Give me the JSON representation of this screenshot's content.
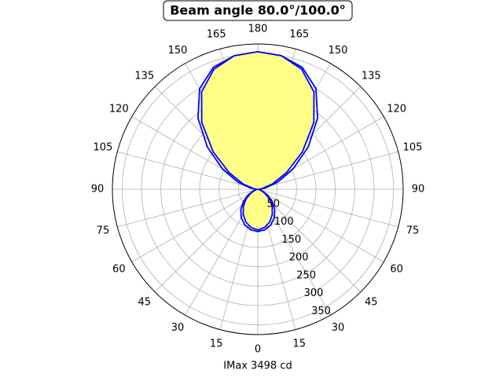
{
  "chart_data": {
    "type": "polar",
    "title": "Beam angle 80.0°/100.0°",
    "x_label": "IMax 3498 cd",
    "x": [
      0,
      10,
      20,
      30,
      40,
      50,
      60,
      70,
      80,
      90,
      100,
      110,
      120,
      130,
      140,
      150,
      160,
      170,
      180,
      190,
      200,
      210,
      220,
      230,
      240,
      250,
      260,
      270,
      280,
      290,
      300,
      310,
      320,
      330,
      340,
      350,
      360
    ],
    "series": [
      {
        "color": "#0000ff",
        "fill": null,
        "values": [
          109,
          106,
          98,
          85,
          68,
          48,
          28,
          12,
          3,
          4,
          20,
          55,
          105,
          170,
          240,
          300,
          335,
          350,
          355,
          350,
          335,
          300,
          240,
          170,
          105,
          55,
          20,
          4,
          3,
          12,
          28,
          48,
          68,
          85,
          98,
          106,
          109
        ]
      },
      {
        "color": "#0000ff",
        "fill": "#ffff88",
        "values": [
          105,
          100,
          90,
          75,
          58,
          40,
          22,
          9,
          2,
          2,
          12,
          40,
          85,
          150,
          225,
          290,
          330,
          350,
          355,
          350,
          330,
          290,
          225,
          150,
          85,
          40,
          12,
          2,
          2,
          9,
          22,
          40,
          58,
          75,
          90,
          100,
          105
        ]
      }
    ],
    "ylim": [
      0,
      375
    ],
    "yticks": [
      50,
      100,
      150,
      200,
      250,
      300,
      350
    ],
    "xticks": [
      0,
      15,
      30,
      45,
      60,
      75,
      90,
      105,
      120,
      135,
      150,
      165,
      180,
      {
        "value": 195,
        "label": "165"
      },
      {
        "value": 210,
        "label": "150"
      },
      {
        "value": 225,
        "label": "135"
      },
      {
        "value": 240,
        "label": "120"
      },
      {
        "value": 255,
        "label": "105"
      },
      {
        "value": 270,
        "label": "90"
      },
      {
        "value": 285,
        "label": "75"
      },
      {
        "value": 300,
        "label": "60"
      },
      {
        "value": 315,
        "label": "45"
      },
      {
        "value": 330,
        "label": "30"
      },
      {
        "value": 345,
        "label": "15"
      }
    ],
    "grid": true
  }
}
